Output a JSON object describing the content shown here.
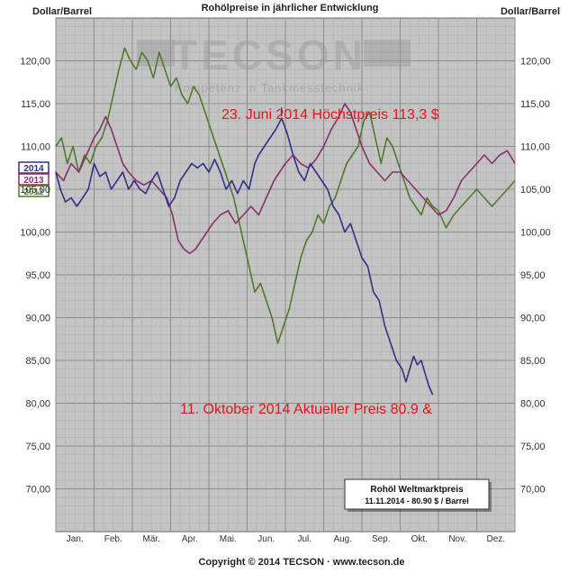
{
  "chart_data": {
    "type": "line",
    "title": "Rohölpreise in jährlicher Entwicklung",
    "ylabel_left": "Dollar/Barrel",
    "ylabel_right": "Dollar/Barrel",
    "ylim": [
      65,
      125
    ],
    "yticks": [
      "120,00",
      "115,00",
      "110,00",
      "105,00",
      "100,00",
      "95,00",
      "90,00",
      "85,00",
      "80,00",
      "75,00",
      "70,00"
    ],
    "ytick_values": [
      120,
      115,
      110,
      105,
      100,
      95,
      90,
      85,
      80,
      75,
      70
    ],
    "months": [
      "Jan.",
      "Feb.",
      "Mär.",
      "Apr.",
      "Mai.",
      "Jun.",
      "Jul.",
      "Aug.",
      "Sep.",
      "Okt.",
      "Nov.",
      "Dez."
    ],
    "x_unit": "month index (0 = start of January, 12 = end of December)",
    "grid": true,
    "legend_placement": "left",
    "series": [
      {
        "name": "2014",
        "color": "#33308a",
        "x": [
          0.0,
          0.12,
          0.25,
          0.4,
          0.55,
          0.7,
          0.85,
          1.0,
          1.15,
          1.3,
          1.45,
          1.6,
          1.75,
          1.9,
          2.05,
          2.2,
          2.35,
          2.5,
          2.65,
          2.8,
          2.95,
          3.1,
          3.25,
          3.4,
          3.55,
          3.7,
          3.85,
          4.0,
          4.15,
          4.3,
          4.45,
          4.6,
          4.75,
          4.9,
          5.05,
          5.2,
          5.3,
          5.45,
          5.6,
          5.75,
          5.9,
          6.05,
          6.2,
          6.35,
          6.5,
          6.65,
          6.8,
          6.95,
          7.1,
          7.25,
          7.4,
          7.55,
          7.7,
          7.85,
          8.0,
          8.15,
          8.3,
          8.45,
          8.6,
          8.75,
          8.9,
          9.05,
          9.15,
          9.25,
          9.35,
          9.45,
          9.55,
          9.65,
          9.75,
          9.85
        ],
        "y": [
          107,
          105,
          103.5,
          104,
          103,
          104,
          105,
          108,
          106.5,
          107,
          105,
          106,
          107,
          105,
          106,
          105,
          104.5,
          106,
          107,
          105,
          103,
          104,
          106,
          107,
          108,
          107.5,
          108,
          107,
          108.5,
          107,
          105,
          106,
          104.5,
          106,
          105,
          108,
          109,
          110,
          111,
          112,
          113.3,
          111.5,
          109,
          107,
          106,
          108,
          107,
          106,
          105,
          103,
          102,
          100,
          101,
          99,
          97,
          96,
          93,
          92,
          89,
          87,
          85,
          84,
          82.5,
          84,
          85.5,
          84.5,
          85,
          83.5,
          82,
          81
        ]
      },
      {
        "name": "2013",
        "color": "#8a2f6a",
        "x": [
          0.0,
          0.2,
          0.4,
          0.6,
          0.8,
          1.0,
          1.15,
          1.3,
          1.45,
          1.6,
          1.75,
          1.9,
          2.1,
          2.3,
          2.5,
          2.7,
          2.9,
          3.05,
          3.2,
          3.35,
          3.5,
          3.65,
          3.8,
          3.95,
          4.1,
          4.3,
          4.5,
          4.7,
          4.9,
          5.1,
          5.3,
          5.5,
          5.7,
          5.85,
          6.0,
          6.2,
          6.4,
          6.6,
          6.8,
          7.0,
          7.2,
          7.4,
          7.55,
          7.7,
          7.85,
          8.0,
          8.2,
          8.4,
          8.6,
          8.8,
          9.0,
          9.2,
          9.4,
          9.6,
          9.8,
          10.0,
          10.2,
          10.4,
          10.6,
          10.8,
          11.0,
          11.2,
          11.4,
          11.6,
          11.8,
          12.0
        ],
        "y": [
          107,
          106,
          108,
          107,
          109,
          111,
          112,
          113.5,
          112,
          110,
          108,
          107,
          106,
          105.5,
          106,
          105,
          104,
          102,
          99,
          98,
          97.5,
          98,
          99,
          100,
          101,
          102,
          102.5,
          101,
          102,
          103,
          102,
          104,
          106,
          107,
          108,
          109,
          108,
          107.5,
          108.5,
          110,
          112,
          113.5,
          115,
          114,
          112,
          110,
          108,
          107,
          106,
          107,
          107,
          106,
          105,
          104,
          103,
          102,
          102.5,
          104,
          106,
          107,
          108,
          109,
          108,
          109,
          109.5,
          108
        ]
      },
      {
        "name": "2012",
        "color": "#4f7a2a",
        "x": [
          0.0,
          0.15,
          0.3,
          0.45,
          0.6,
          0.75,
          0.9,
          1.05,
          1.2,
          1.35,
          1.5,
          1.65,
          1.8,
          1.95,
          2.1,
          2.25,
          2.4,
          2.55,
          2.7,
          2.85,
          3.0,
          3.15,
          3.3,
          3.45,
          3.6,
          3.75,
          3.9,
          4.05,
          4.2,
          4.35,
          4.5,
          4.65,
          4.8,
          4.95,
          5.1,
          5.2,
          5.35,
          5.5,
          5.65,
          5.8,
          5.95,
          6.1,
          6.25,
          6.4,
          6.55,
          6.7,
          6.85,
          7.0,
          7.15,
          7.3,
          7.45,
          7.6,
          7.75,
          7.9,
          8.05,
          8.2,
          8.35,
          8.5,
          8.65,
          8.8,
          8.95,
          9.1,
          9.25,
          9.4,
          9.55,
          9.7,
          9.85,
          10.0,
          10.2,
          10.4,
          10.6,
          10.8,
          11.0,
          11.2,
          11.4,
          11.6,
          11.8,
          12.0
        ],
        "y": [
          110,
          111,
          108,
          110,
          107,
          109,
          108,
          110,
          111,
          113,
          116,
          119,
          121.5,
          120,
          119,
          121,
          120,
          118,
          121,
          119,
          117,
          118,
          116,
          115,
          117,
          116,
          114,
          112,
          110,
          108,
          106,
          104,
          101,
          98,
          95,
          93,
          94,
          92,
          90,
          87,
          89,
          91,
          94,
          97,
          99,
          100,
          102,
          101,
          103,
          104,
          106,
          108,
          109,
          110,
          113,
          114,
          111,
          108,
          111,
          110,
          108,
          106,
          104,
          103,
          102,
          104,
          103,
          102.5,
          100.5,
          102,
          103,
          104,
          105,
          104,
          103,
          104,
          105,
          106
        ]
      }
    ],
    "annotations": [
      "23. Juni 2014 Höchstpreis 113,3 $",
      "11. Oktober 2014 Aktueller Preis 80.9 &"
    ]
  },
  "watermark": {
    "brand": "TECSON",
    "tagline": "Kompetenz in Tankmesstechnik"
  },
  "info_box": {
    "title": "Rohöl Weltmarktpreis",
    "subtitle": "11.11.2014 - 80.90 $ / Barrel"
  },
  "footer": {
    "copyright": "Copyright © 2014 TECSON · www.tecson.de"
  }
}
